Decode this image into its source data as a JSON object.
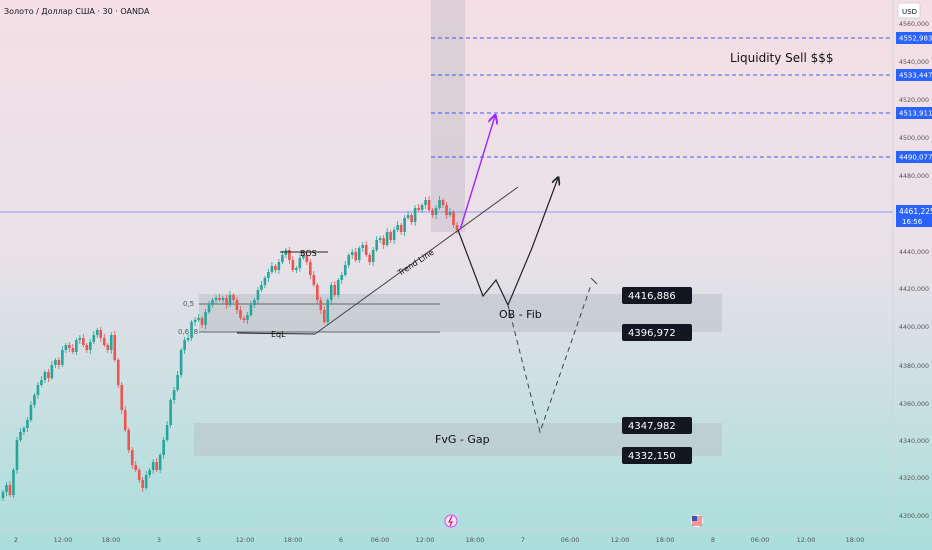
{
  "header": {
    "symbol_title": "Золото / Доллар США · 30 · OANDA"
  },
  "currency_button": "USD",
  "colors": {
    "bg_top": "#f4dfe6",
    "bg_bottom": "#a9dedc",
    "up": "#26a69a",
    "down": "#ef5350",
    "level_line": "#3d5afe",
    "price_badge": "#2962ff",
    "zone": "#c4cbd0",
    "purple_arrow": "#9c27ff"
  },
  "chart_data": {
    "type": "candlestick",
    "ylim": [
      4295,
      4566
    ],
    "y_ticks": [
      "4560,000",
      "4540,000",
      "4520,000",
      "4500,000",
      "4480,000",
      "4440,000",
      "4420,000",
      "4400,000",
      "4380,000",
      "4360,000",
      "4340,000",
      "4320,000",
      "4300,000"
    ],
    "x_ticks": [
      "2",
      "12:00",
      "18:00",
      "3",
      "5",
      "12:00",
      "18:00",
      "6",
      "06:00",
      "12:00",
      "18:00",
      "7",
      "06:00",
      "12:00",
      "18:00",
      "8",
      "06:00",
      "12:00",
      "18:00"
    ],
    "current_price": "4461,225",
    "countdown": "16:56",
    "level_labels": [
      "4552,983",
      "4533,447",
      "4513,911",
      "4490,077"
    ],
    "annotations": {
      "liquidity": "Liquidity Sell $$$",
      "bos": "BOS",
      "eql": "EqL",
      "trend_line": "Trend Line",
      "ob_fib": "OB - Fib",
      "fvg_gap": "FvG - Gap",
      "fib_05": "0,5",
      "fib_0618": "0,618"
    },
    "zone_labels": {
      "ob_top": "4416,886",
      "ob_bottom": "4396,972",
      "fvg_top": "4347,982",
      "fvg_bottom": "4332,150"
    }
  }
}
